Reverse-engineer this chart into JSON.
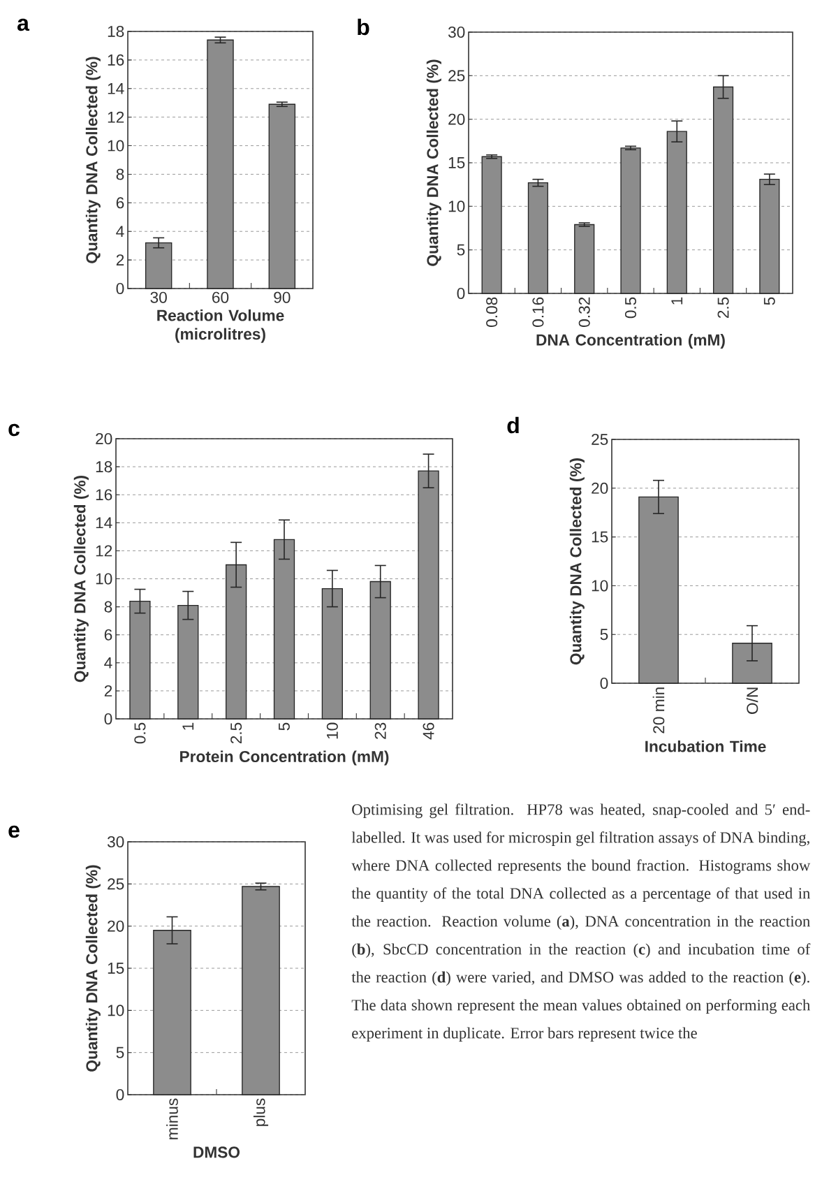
{
  "chart_data": [
    {
      "type": "bar",
      "title": "a",
      "xlabel": "Reaction Volume (microlitres)",
      "ylabel": "Quantity DNA Collected (%)",
      "categories": [
        "30",
        "60",
        "90"
      ],
      "values": [
        3.2,
        17.4,
        12.9
      ],
      "errors": [
        0.35,
        0.2,
        0.15
      ],
      "color": "#8c8c8c",
      "ylim": [
        0,
        18
      ],
      "yticks": [
        0,
        2,
        4,
        6,
        8,
        10,
        12,
        14,
        16,
        18
      ],
      "grid": "y"
    },
    {
      "type": "bar",
      "title": "b",
      "xlabel": "DNA Concentration (mM)",
      "ylabel": "Quantity DNA Collected (%)",
      "categories": [
        "0.08",
        "0.16",
        "0.32",
        "0.5",
        "1",
        "2.5",
        "5"
      ],
      "values": [
        15.7,
        12.7,
        7.9,
        16.7,
        18.6,
        23.7,
        13.1
      ],
      "errors": [
        0.2,
        0.4,
        0.2,
        0.2,
        1.2,
        1.3,
        0.6
      ],
      "color": "#8c8c8c",
      "ylim": [
        0,
        30
      ],
      "yticks": [
        0,
        5,
        10,
        15,
        20,
        25,
        30
      ],
      "grid": "y"
    },
    {
      "type": "bar",
      "title": "c",
      "xlabel": "Protein Concentration (mM)",
      "ylabel": "Quantity DNA Collected (%)",
      "categories": [
        "0.5",
        "1",
        "2.5",
        "5",
        "10",
        "23",
        "46"
      ],
      "values": [
        8.4,
        8.1,
        11.0,
        12.8,
        9.3,
        9.8,
        17.7
      ],
      "errors": [
        0.85,
        1.0,
        1.6,
        1.4,
        1.3,
        1.15,
        1.2
      ],
      "color": "#8c8c8c",
      "ylim": [
        0,
        20
      ],
      "yticks": [
        0,
        2,
        4,
        6,
        8,
        10,
        12,
        14,
        16,
        18,
        20
      ],
      "grid": "y"
    },
    {
      "type": "bar",
      "title": "d",
      "xlabel": "Incubation Time",
      "ylabel": "Quantity DNA Collected (%)",
      "categories": [
        "20 min",
        "O/N"
      ],
      "values": [
        19.1,
        4.1
      ],
      "errors": [
        1.7,
        1.8
      ],
      "color": "#8c8c8c",
      "ylim": [
        0,
        25
      ],
      "yticks": [
        0,
        5,
        10,
        15,
        20,
        25
      ],
      "grid": "y"
    },
    {
      "type": "bar",
      "title": "e",
      "xlabel": "DMSO",
      "ylabel": "Quantity DNA Collected (%)",
      "categories": [
        "minus",
        "plus"
      ],
      "values": [
        19.5,
        24.7
      ],
      "errors": [
        1.6,
        0.4
      ],
      "color": "#8c8c8c",
      "ylim": [
        0,
        30
      ],
      "yticks": [
        0,
        5,
        10,
        15,
        20,
        25,
        30
      ],
      "grid": "y"
    },
    {
      "type": "other",
      "annotations": [
        "Optimising gel filtration. HP78 was heated, snap-cooled and 5′ end-labelled. It was used for microspin gel filtration assays of DNA binding, where DNA collected represents the bound fraction. Histograms show the quantity of the total DNA collected as a percentage of that used in the reaction. Reaction volume (**a**), DNA concentration in the reaction (**b**), SbcCD concentration in the reaction (**c**) and incubation time of the reaction (**d**) were varied, and DMSO was added to the reaction (**e**). The data shown represent the mean values obtained on performing each experiment in duplicate. Error bars represent twice the"
      ]
    }
  ]
}
